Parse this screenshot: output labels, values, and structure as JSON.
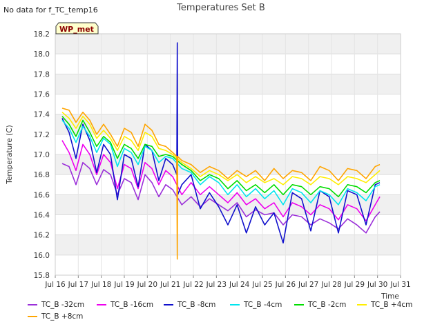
{
  "no_data_note": "No data for f_TC_temp16",
  "badge": {
    "label": "WP_met",
    "text_color": "#8b0000",
    "bg_color": "#ffffcc"
  },
  "chart_data": {
    "type": "line",
    "title": "Temperatures Set B",
    "xlabel": "Time",
    "ylabel": "Temperature (C)",
    "xlim": [
      16,
      31
    ],
    "ylim": [
      15.8,
      18.2
    ],
    "x_ticks": [
      "Jul 16",
      "Jul 17",
      "Jul 18",
      "Jul 19",
      "Jul 20",
      "Jul 21",
      "Jul 22",
      "Jul 23",
      "Jul 24",
      "Jul 25",
      "Jul 26",
      "Jul 27",
      "Jul 28",
      "Jul 29",
      "Jul 30",
      "Jul 31"
    ],
    "y_ticks": [
      "15.8",
      "16.0",
      "16.2",
      "16.4",
      "16.6",
      "16.8",
      "17.0",
      "17.2",
      "17.4",
      "17.6",
      "17.8",
      "18.0",
      "18.2"
    ],
    "grid": true,
    "legend_placement": "bottom",
    "x": [
      16.3,
      16.6,
      16.9,
      17.2,
      17.5,
      17.8,
      18.1,
      18.4,
      18.7,
      19.0,
      19.3,
      19.6,
      19.9,
      20.2,
      20.5,
      20.8,
      21.1,
      21.5,
      21.9,
      22.3,
      22.7,
      23.1,
      23.5,
      23.9,
      24.3,
      24.7,
      25.1,
      25.5,
      25.9,
      26.3,
      26.7,
      27.1,
      27.5,
      27.9,
      28.3,
      28.7,
      29.1,
      29.5,
      29.9,
      30.1
    ],
    "series": [
      {
        "name": "TC_B -32cm",
        "color": "#9b30d9",
        "values": [
          16.91,
          16.88,
          16.7,
          16.92,
          16.86,
          16.7,
          16.85,
          16.8,
          16.6,
          16.76,
          16.72,
          16.55,
          16.8,
          16.72,
          16.58,
          16.7,
          16.65,
          16.5,
          16.58,
          16.48,
          16.56,
          16.5,
          16.44,
          16.52,
          16.38,
          16.45,
          16.4,
          16.42,
          16.3,
          16.4,
          16.38,
          16.3,
          16.36,
          16.32,
          16.26,
          16.36,
          16.3,
          16.22,
          16.38,
          16.43
        ]
      },
      {
        "name": "TC_B -16cm",
        "color": "#ee00ee",
        "values": [
          17.14,
          17.02,
          16.84,
          17.1,
          17.0,
          16.8,
          17.0,
          16.92,
          16.66,
          16.9,
          16.86,
          16.66,
          16.92,
          16.86,
          16.7,
          16.84,
          16.78,
          16.6,
          16.72,
          16.6,
          16.68,
          16.6,
          16.52,
          16.62,
          16.5,
          16.56,
          16.46,
          16.52,
          16.38,
          16.52,
          16.48,
          16.4,
          16.5,
          16.46,
          16.35,
          16.5,
          16.46,
          16.34,
          16.5,
          16.58
        ]
      },
      {
        "name": "TC_B -8cm",
        "color": "#1010cc",
        "values": [
          17.36,
          17.22,
          16.96,
          17.3,
          17.14,
          16.82,
          17.1,
          17.0,
          16.55,
          17.0,
          16.96,
          16.68,
          17.1,
          17.04,
          16.74,
          16.96,
          16.9,
          16.7,
          16.8,
          16.46,
          16.62,
          16.48,
          16.3,
          16.5,
          16.22,
          16.48,
          16.3,
          16.42,
          16.12,
          16.62,
          16.56,
          16.24,
          16.64,
          16.58,
          16.22,
          16.64,
          16.6,
          16.3,
          16.7,
          16.72
        ]
      },
      {
        "name": "TC_B -4cm",
        "color": "#00e5ee",
        "values": [
          17.34,
          17.26,
          17.12,
          17.28,
          17.18,
          17.02,
          17.16,
          17.1,
          16.88,
          17.06,
          17.02,
          16.9,
          17.08,
          17.04,
          16.92,
          16.98,
          16.96,
          16.86,
          16.82,
          16.7,
          16.78,
          16.72,
          16.6,
          16.7,
          16.58,
          16.66,
          16.56,
          16.64,
          16.5,
          16.66,
          16.62,
          16.52,
          16.64,
          16.6,
          16.5,
          16.66,
          16.62,
          16.54,
          16.68,
          16.7
        ]
      },
      {
        "name": "TC_B -2cm",
        "color": "#00dd00",
        "values": [
          17.38,
          17.3,
          17.18,
          17.34,
          17.22,
          17.08,
          17.18,
          17.12,
          16.96,
          17.1,
          17.06,
          16.96,
          17.1,
          17.08,
          16.98,
          17.0,
          16.98,
          16.9,
          16.84,
          16.74,
          16.8,
          16.76,
          16.66,
          16.74,
          16.64,
          16.7,
          16.62,
          16.7,
          16.6,
          16.7,
          16.68,
          16.6,
          16.68,
          16.66,
          16.58,
          16.7,
          16.68,
          16.62,
          16.72,
          16.74
        ]
      },
      {
        "name": "TC_B +4cm",
        "color": "#ffee00",
        "values": [
          17.42,
          17.36,
          17.26,
          17.38,
          17.3,
          17.16,
          17.24,
          17.16,
          17.04,
          17.18,
          17.14,
          17.04,
          17.22,
          17.18,
          17.06,
          17.04,
          17.0,
          16.92,
          16.86,
          16.78,
          16.84,
          16.8,
          16.74,
          16.8,
          16.72,
          16.78,
          16.72,
          16.76,
          16.7,
          16.78,
          16.76,
          16.7,
          16.78,
          16.76,
          16.7,
          16.78,
          16.76,
          16.72,
          16.8,
          16.84
        ]
      },
      {
        "name": "TC_B +8cm",
        "color": "#ffa500",
        "values": [
          17.46,
          17.44,
          17.32,
          17.42,
          17.34,
          17.2,
          17.3,
          17.2,
          17.08,
          17.26,
          17.22,
          17.08,
          17.3,
          17.24,
          17.1,
          17.08,
          17.02,
          16.94,
          16.9,
          16.82,
          16.88,
          16.84,
          16.76,
          16.84,
          16.78,
          16.84,
          16.74,
          16.86,
          16.76,
          16.84,
          16.82,
          16.74,
          16.88,
          16.84,
          16.74,
          16.86,
          16.84,
          16.76,
          16.88,
          16.9
        ]
      }
    ],
    "spike": {
      "x": 21.3,
      "max": 18.11,
      "min": 15.96
    }
  }
}
